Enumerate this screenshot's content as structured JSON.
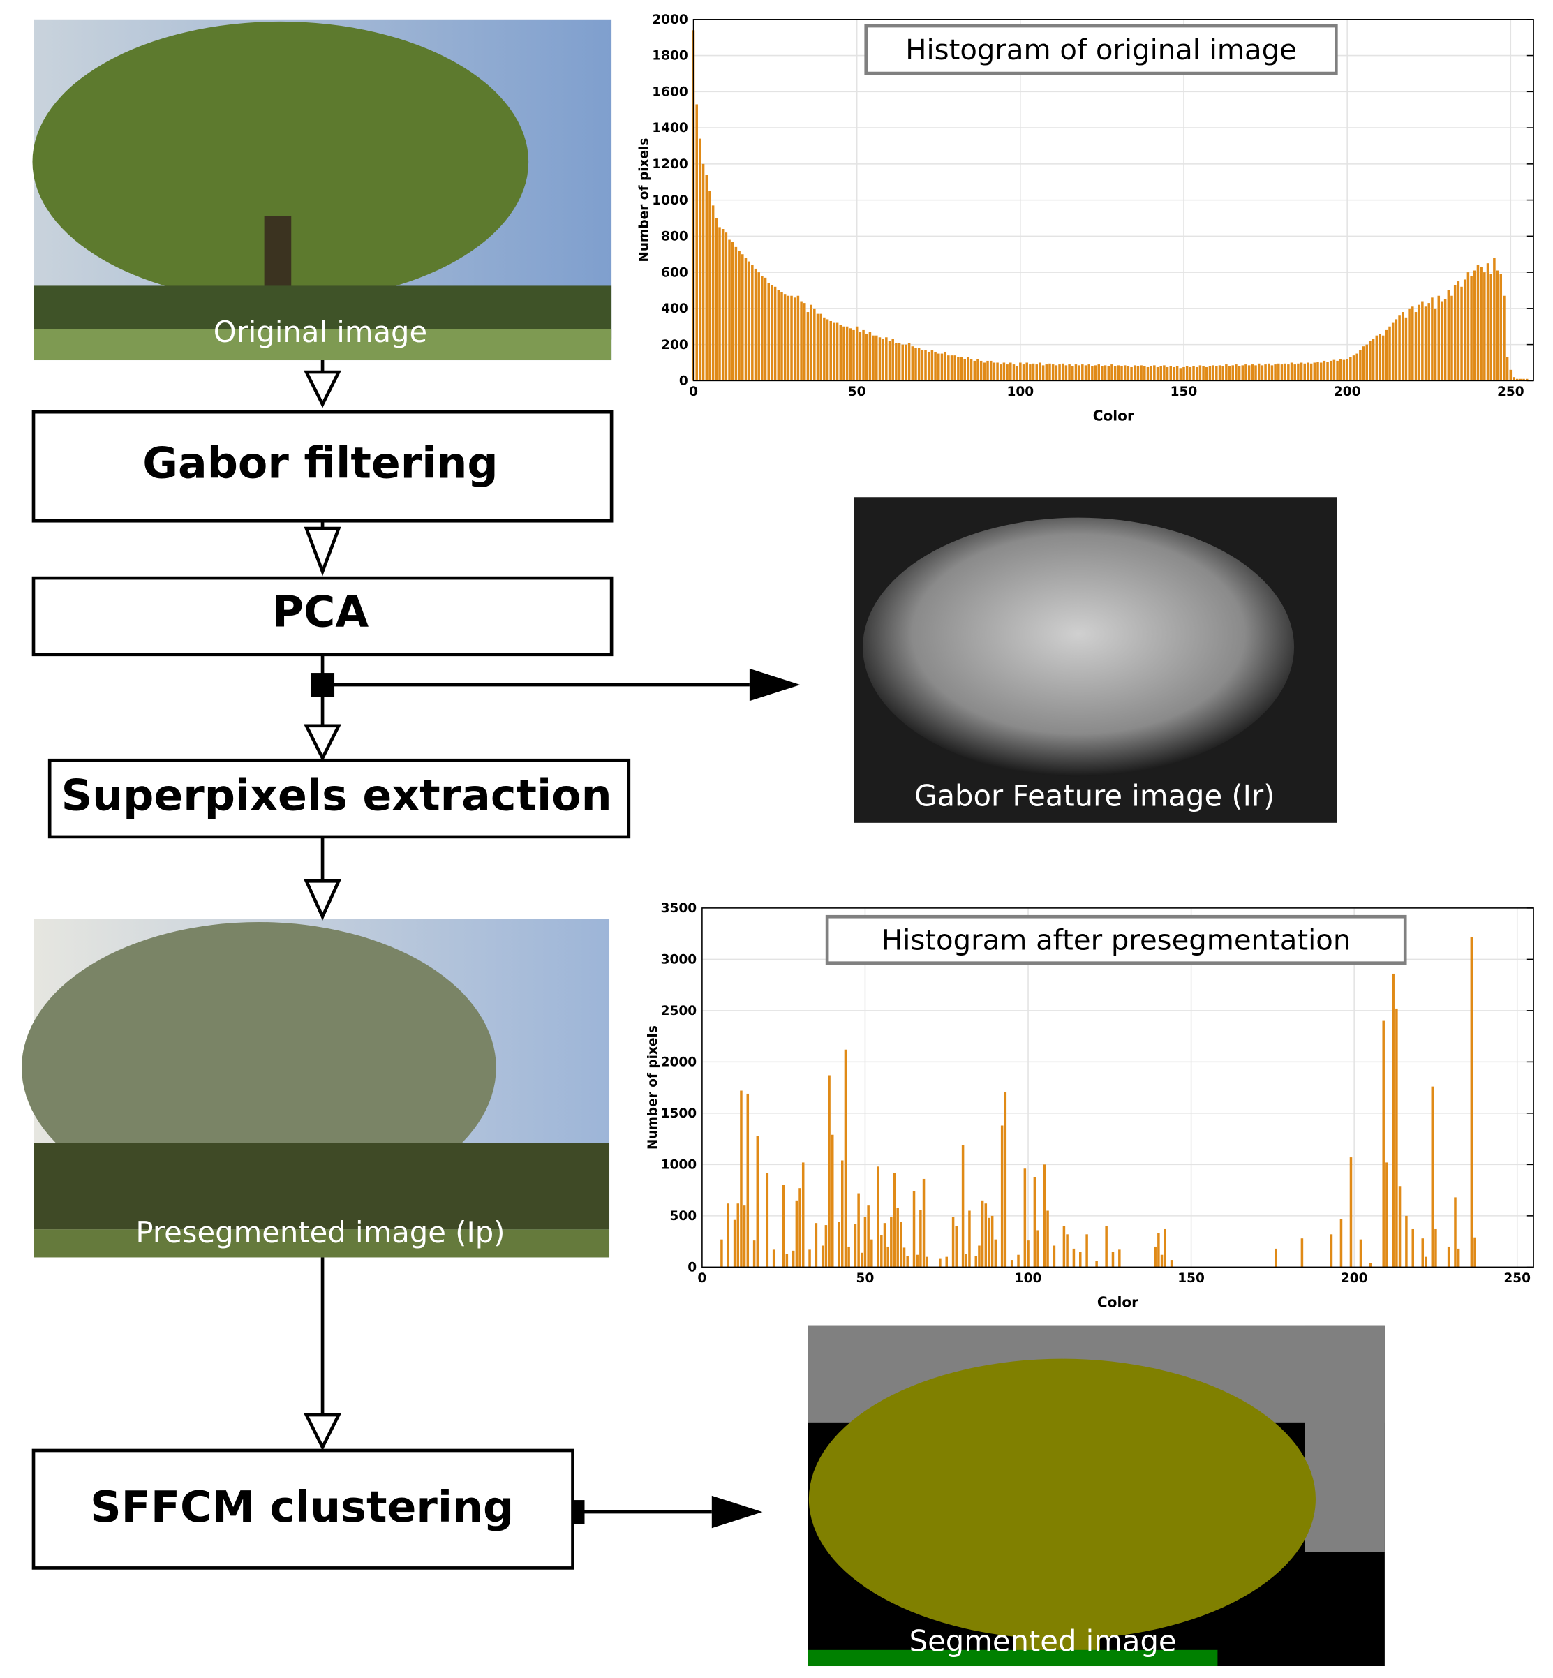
{
  "nodes": [
    {
      "label": "Gabor filtering"
    },
    {
      "label": "PCA"
    },
    {
      "label": "Superpixels extraction"
    },
    {
      "label": "SFFCM clustering"
    }
  ],
  "images": [
    {
      "caption": "Original image"
    },
    {
      "caption": "Gabor Feature image (Ir)"
    },
    {
      "caption": "Presegmented image (Ip)"
    },
    {
      "caption": "Segmented image"
    }
  ],
  "chart_data": [
    {
      "type": "bar",
      "title": "Histogram of original image",
      "xlabel": "Color",
      "ylabel": "Number of pixels",
      "color": "#e08a17",
      "grid": true,
      "xlim": [
        0,
        257
      ],
      "ylim": [
        0,
        2000
      ],
      "xticks": [
        0,
        50,
        100,
        150,
        200,
        250
      ],
      "yticks": [
        0,
        200,
        400,
        600,
        800,
        1000,
        1200,
        1400,
        1600,
        1800,
        2000
      ],
      "x": [
        0,
        1,
        2,
        3,
        4,
        5,
        6,
        7,
        8,
        9,
        10,
        11,
        12,
        13,
        14,
        15,
        16,
        17,
        18,
        19,
        20,
        21,
        22,
        23,
        24,
        25,
        26,
        27,
        28,
        29,
        30,
        31,
        32,
        33,
        34,
        35,
        36,
        37,
        38,
        39,
        40,
        41,
        42,
        43,
        44,
        45,
        46,
        47,
        48,
        49,
        50,
        51,
        52,
        53,
        54,
        55,
        56,
        57,
        58,
        59,
        60,
        61,
        62,
        63,
        64,
        65,
        66,
        67,
        68,
        69,
        70,
        71,
        72,
        73,
        74,
        75,
        76,
        77,
        78,
        79,
        80,
        81,
        82,
        83,
        84,
        85,
        86,
        87,
        88,
        89,
        90,
        91,
        92,
        93,
        94,
        95,
        96,
        97,
        98,
        99,
        100,
        101,
        102,
        103,
        104,
        105,
        106,
        107,
        108,
        109,
        110,
        111,
        112,
        113,
        114,
        115,
        116,
        117,
        118,
        119,
        120,
        121,
        122,
        123,
        124,
        125,
        126,
        127,
        128,
        129,
        130,
        131,
        132,
        133,
        134,
        135,
        136,
        137,
        138,
        139,
        140,
        141,
        142,
        143,
        144,
        145,
        146,
        147,
        148,
        149,
        150,
        151,
        152,
        153,
        154,
        155,
        156,
        157,
        158,
        159,
        160,
        161,
        162,
        163,
        164,
        165,
        166,
        167,
        168,
        169,
        170,
        171,
        172,
        173,
        174,
        175,
        176,
        177,
        178,
        179,
        180,
        181,
        182,
        183,
        184,
        185,
        186,
        187,
        188,
        189,
        190,
        191,
        192,
        193,
        194,
        195,
        196,
        197,
        198,
        199,
        200,
        201,
        202,
        203,
        204,
        205,
        206,
        207,
        208,
        209,
        210,
        211,
        212,
        213,
        214,
        215,
        216,
        217,
        218,
        219,
        220,
        221,
        222,
        223,
        224,
        225,
        226,
        227,
        228,
        229,
        230,
        231,
        232,
        233,
        234,
        235,
        236,
        237,
        238,
        239,
        240,
        241,
        242,
        243,
        244,
        245,
        246,
        247,
        248,
        249,
        250,
        251,
        252,
        253,
        254,
        255
      ],
      "values": [
        1940,
        1530,
        1340,
        1200,
        1140,
        1050,
        970,
        900,
        850,
        840,
        820,
        780,
        770,
        740,
        720,
        700,
        680,
        660,
        640,
        620,
        600,
        580,
        570,
        540,
        530,
        520,
        500,
        490,
        480,
        470,
        470,
        460,
        470,
        440,
        430,
        380,
        420,
        400,
        370,
        370,
        350,
        340,
        330,
        320,
        320,
        310,
        300,
        300,
        290,
        280,
        300,
        270,
        280,
        260,
        270,
        250,
        250,
        240,
        230,
        240,
        220,
        230,
        210,
        210,
        200,
        200,
        210,
        190,
        180,
        180,
        170,
        170,
        160,
        170,
        160,
        150,
        150,
        160,
        140,
        140,
        140,
        130,
        130,
        120,
        130,
        120,
        110,
        120,
        110,
        100,
        110,
        110,
        100,
        100,
        90,
        100,
        90,
        100,
        90,
        80,
        100,
        90,
        100,
        90,
        95,
        90,
        100,
        85,
        90,
        95,
        90,
        85,
        90,
        95,
        85,
        90,
        80,
        90,
        85,
        90,
        85,
        90,
        80,
        85,
        90,
        80,
        85,
        80,
        90,
        80,
        85,
        80,
        85,
        80,
        75,
        85,
        80,
        85,
        80,
        75,
        80,
        85,
        75,
        80,
        85,
        75,
        80,
        75,
        80,
        70,
        75,
        80,
        75,
        80,
        75,
        85,
        80,
        75,
        80,
        85,
        80,
        85,
        80,
        90,
        80,
        85,
        90,
        80,
        85,
        90,
        85,
        90,
        85,
        95,
        85,
        90,
        95,
        85,
        90,
        95,
        90,
        95,
        90,
        100,
        90,
        95,
        100,
        95,
        100,
        95,
        100,
        105,
        100,
        110,
        105,
        110,
        115,
        110,
        120,
        115,
        120,
        130,
        140,
        150,
        170,
        190,
        200,
        220,
        230,
        250,
        260,
        250,
        280,
        300,
        320,
        340,
        360,
        380,
        350,
        400,
        410,
        380,
        420,
        440,
        410,
        430,
        460,
        400,
        470,
        440,
        450,
        500,
        470,
        530,
        550,
        520,
        560,
        600,
        580,
        610,
        640,
        630,
        600,
        650,
        590,
        680,
        610,
        590,
        470,
        130,
        60,
        20,
        10,
        10,
        10,
        10
      ]
    },
    {
      "type": "bar",
      "title": "Histogram after presegmentation",
      "xlabel": "Color",
      "ylabel": "Number of pixels",
      "color": "#e08a17",
      "grid": true,
      "xlim": [
        0,
        255
      ],
      "ylim": [
        0,
        3500
      ],
      "xticks": [
        0,
        50,
        100,
        150,
        200,
        250
      ],
      "yticks": [
        0,
        500,
        1000,
        1500,
        2000,
        2500,
        3000,
        3500
      ],
      "x": [
        6,
        8,
        10,
        11,
        12,
        13,
        14,
        16,
        17,
        20,
        22,
        25,
        26,
        28,
        29,
        30,
        31,
        33,
        35,
        37,
        38,
        39,
        40,
        42,
        43,
        44,
        45,
        47,
        48,
        49,
        50,
        51,
        52,
        54,
        55,
        56,
        57,
        58,
        59,
        60,
        61,
        62,
        63,
        65,
        66,
        67,
        68,
        69,
        73,
        75,
        77,
        78,
        80,
        81,
        82,
        84,
        85,
        86,
        87,
        88,
        89,
        90,
        92,
        93,
        95,
        97,
        99,
        100,
        102,
        103,
        105,
        106,
        108,
        111,
        112,
        114,
        116,
        118,
        121,
        124,
        126,
        128,
        139,
        140,
        141,
        142,
        144,
        176,
        184,
        193,
        196,
        199,
        202,
        205,
        209,
        210,
        212,
        213,
        214,
        216,
        218,
        221,
        222,
        224,
        225,
        229,
        231,
        232,
        236,
        237
      ],
      "values": [
        270,
        620,
        460,
        620,
        1720,
        600,
        1690,
        260,
        1280,
        920,
        170,
        800,
        130,
        160,
        650,
        770,
        1020,
        170,
        430,
        210,
        410,
        1870,
        1290,
        440,
        1040,
        2120,
        200,
        420,
        720,
        140,
        490,
        600,
        270,
        980,
        310,
        430,
        200,
        490,
        920,
        580,
        440,
        190,
        110,
        740,
        120,
        560,
        860,
        100,
        80,
        100,
        490,
        400,
        1190,
        130,
        550,
        110,
        210,
        650,
        620,
        480,
        500,
        270,
        1380,
        1710,
        70,
        120,
        960,
        260,
        880,
        360,
        1000,
        550,
        210,
        400,
        320,
        180,
        150,
        320,
        60,
        400,
        150,
        170,
        200,
        330,
        120,
        370,
        70,
        180,
        280,
        320,
        470,
        1070,
        270,
        40,
        2400,
        1020,
        2860,
        2520,
        790,
        500,
        370,
        280,
        100,
        1760,
        370,
        200,
        680,
        180,
        3220,
        290
      ]
    }
  ]
}
